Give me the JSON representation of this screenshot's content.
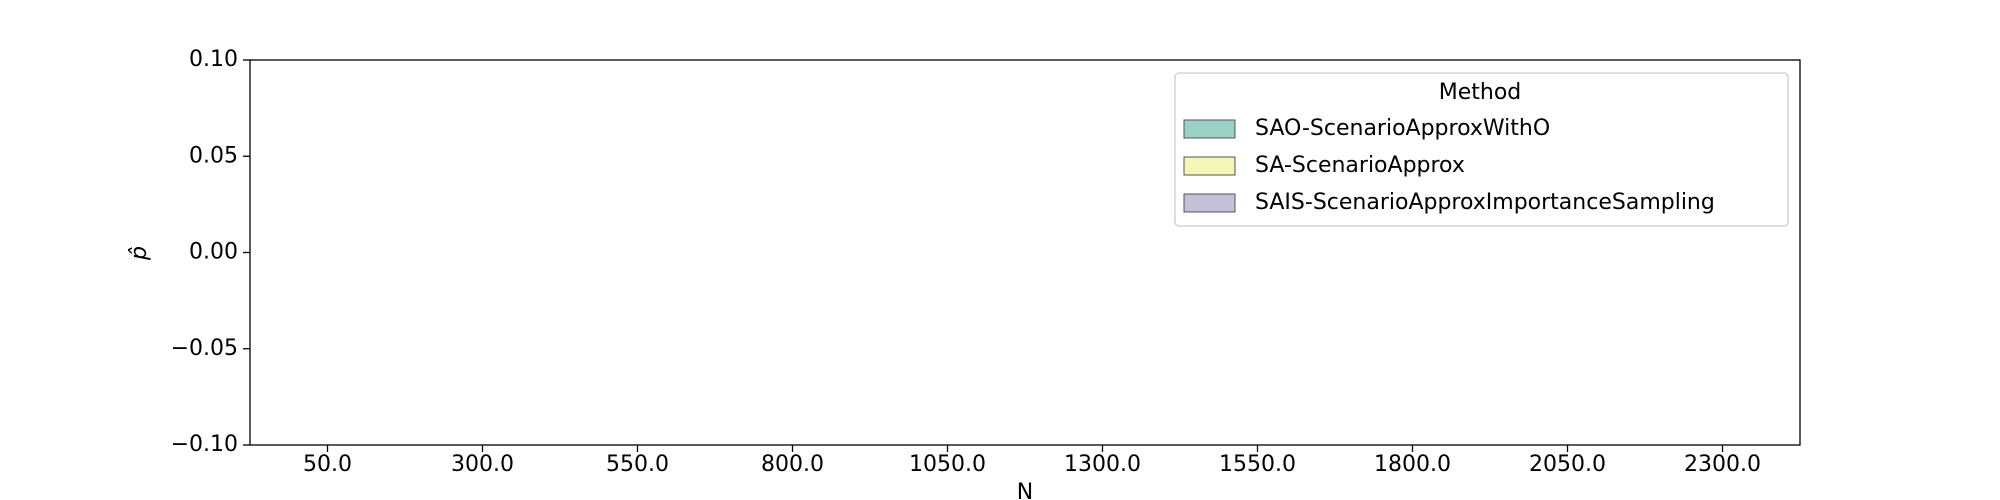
{
  "chart_data": {
    "type": "box",
    "x_label": "N",
    "y_label": "p̂",
    "categories": [
      "50.0",
      "300.0",
      "550.0",
      "800.0",
      "1050.0",
      "1300.0",
      "1550.0",
      "1800.0",
      "2050.0",
      "2300.0"
    ],
    "ylim": [
      -0.1,
      0.1
    ],
    "yticks": [
      {
        "value": -0.1,
        "label": "−0.10"
      },
      {
        "value": -0.05,
        "label": "−0.05"
      },
      {
        "value": 0,
        "label": "0.00"
      },
      {
        "value": 0.05,
        "label": "0.05"
      },
      {
        "value": 0.1,
        "label": "0.10"
      }
    ],
    "legend_title": "Method",
    "legend_position": "upper right",
    "series": [
      {
        "name": "SAO-ScenarioApproxWithO",
        "color": "#9bd0c5"
      },
      {
        "name": "SA-ScenarioApprox",
        "color": "#f5f5b8"
      },
      {
        "name": "SAIS-ScenarioApproxImportanceSampling",
        "color": "#c3c0d8"
      }
    ]
  }
}
